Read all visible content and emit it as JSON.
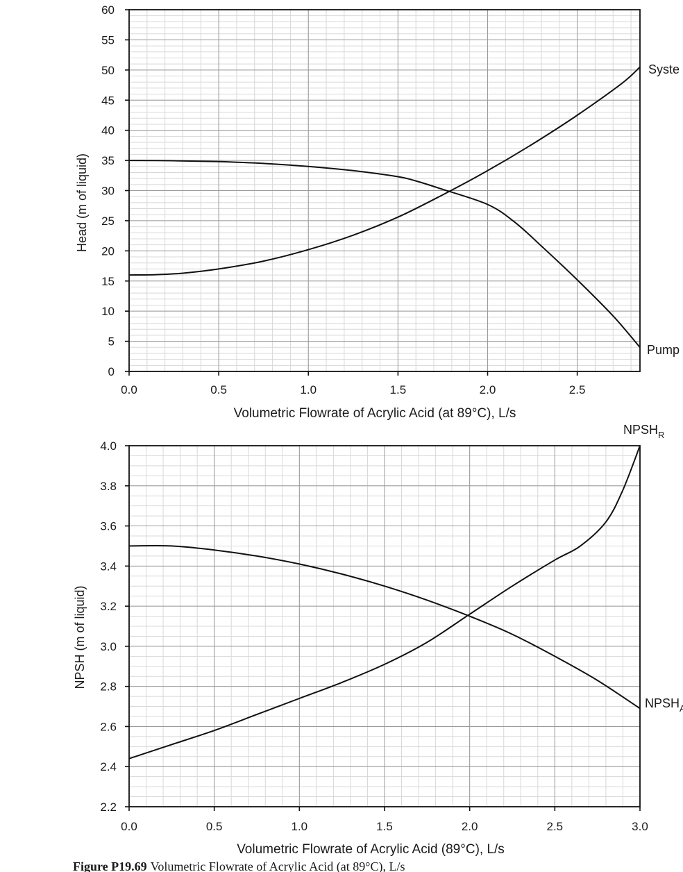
{
  "chart_data": [
    {
      "type": "line",
      "title": "",
      "xlabel": "Volumetric Flowrate of Acrylic Acid (at 89°C), L/s",
      "ylabel": "Head (m of liquid)",
      "xlim": [
        0,
        2.85
      ],
      "ylim": [
        0,
        60
      ],
      "x_ticks": [
        0,
        0.5,
        1.0,
        1.5,
        2.0,
        2.5
      ],
      "x_tick_labels": [
        "0.0",
        "0.5",
        "1.0",
        "1.5",
        "2.0",
        "2.5"
      ],
      "y_ticks": [
        0,
        5,
        10,
        15,
        20,
        25,
        30,
        35,
        40,
        45,
        50,
        55,
        60
      ],
      "y_tick_labels": [
        "0",
        "5",
        "10",
        "15",
        "20",
        "25",
        "30",
        "35",
        "40",
        "45",
        "50",
        "55",
        "60"
      ],
      "grid": true,
      "series": [
        {
          "name": "System",
          "label": "Syste",
          "x": [
            0.0,
            0.15,
            0.3,
            0.5,
            0.75,
            1.0,
            1.25,
            1.5,
            1.75,
            2.0,
            2.25,
            2.5,
            2.75,
            2.85
          ],
          "y": [
            16.0,
            16.05,
            16.3,
            17.0,
            18.3,
            20.2,
            22.6,
            25.6,
            29.3,
            33.3,
            37.7,
            42.5,
            47.8,
            50.5
          ]
        },
        {
          "name": "Pump",
          "label": "Pump",
          "x": [
            0.0,
            0.25,
            0.5,
            0.75,
            1.0,
            1.25,
            1.5,
            1.6,
            1.75,
            2.0,
            2.15,
            2.3,
            2.5,
            2.7,
            2.85
          ],
          "y": [
            35.0,
            34.95,
            34.8,
            34.5,
            34.0,
            33.3,
            32.3,
            31.6,
            30.2,
            27.7,
            24.8,
            20.8,
            15.2,
            9.2,
            4.0
          ]
        }
      ]
    },
    {
      "type": "line",
      "title": "",
      "xlabel": "Volumetric Flowrate of Acrylic Acid (89°C), L/s",
      "ylabel": "NPSH (m of liquid)",
      "xlim": [
        0,
        3.0
      ],
      "ylim": [
        2.2,
        4.0
      ],
      "x_ticks": [
        0,
        0.5,
        1.0,
        1.5,
        2.0,
        2.5,
        3.0
      ],
      "x_tick_labels": [
        "0.0",
        "0.5",
        "1.0",
        "1.5",
        "2.0",
        "2.5",
        "3.0"
      ],
      "y_ticks": [
        2.2,
        2.4,
        2.6,
        2.8,
        3.0,
        3.2,
        3.4,
        3.6,
        3.8,
        4.0
      ],
      "y_tick_labels": [
        "2.2",
        "2.4",
        "2.6",
        "2.8",
        "3.0",
        "3.2",
        "3.4",
        "3.6",
        "3.8",
        "4.0"
      ],
      "grid": true,
      "series": [
        {
          "name": "NPSH_R",
          "label": "NPSH",
          "label_sub": "R",
          "x": [
            0.0,
            0.25,
            0.5,
            0.75,
            1.0,
            1.25,
            1.5,
            1.75,
            2.0,
            2.25,
            2.5,
            2.65,
            2.8,
            2.9,
            3.0
          ],
          "y": [
            2.44,
            2.51,
            2.58,
            2.66,
            2.74,
            2.82,
            2.91,
            3.02,
            3.16,
            3.3,
            3.43,
            3.5,
            3.62,
            3.78,
            4.0
          ]
        },
        {
          "name": "NPSH_A",
          "label": "NPSH",
          "label_sub": "A",
          "x": [
            0.0,
            0.25,
            0.5,
            0.75,
            1.0,
            1.25,
            1.5,
            1.75,
            2.0,
            2.25,
            2.5,
            2.75,
            3.0
          ],
          "y": [
            3.5,
            3.5,
            3.48,
            3.45,
            3.41,
            3.36,
            3.3,
            3.23,
            3.15,
            3.06,
            2.95,
            2.83,
            2.69
          ]
        }
      ]
    }
  ],
  "caption": {
    "figure_number": "Figure P19.69",
    "text": "Volumetric Flowrate of Acrylic Acid (at 89°C), L/s"
  }
}
